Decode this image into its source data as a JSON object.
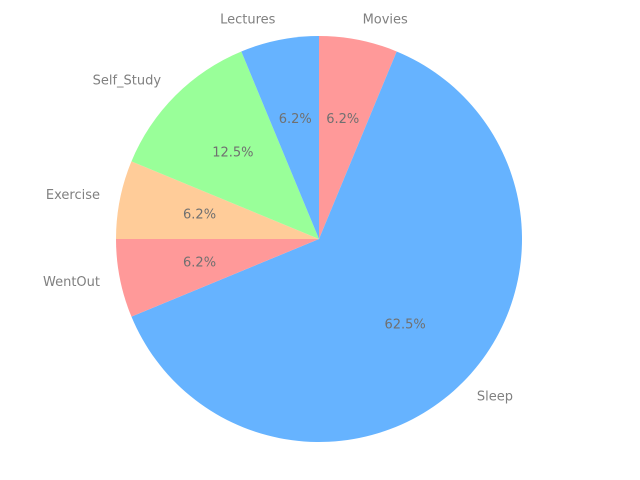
{
  "chart_data": {
    "type": "pie",
    "title": "",
    "categories": [
      "Movies",
      "Sleep",
      "WentOut",
      "Exercise",
      "Self_Study",
      "Lectures"
    ],
    "values": [
      1,
      10,
      1,
      1,
      2,
      1
    ],
    "percent_labels": [
      "6.2%",
      "62.5%",
      "6.2%",
      "6.2%",
      "12.5%",
      "6.2%"
    ],
    "colors": [
      "#ff9999",
      "#66b3ff",
      "#ff9999",
      "#ffcc99",
      "#99ff99",
      "#66b3ff"
    ],
    "start_angle_deg": 90,
    "direction": "clockwise",
    "legend": "none",
    "grid": false
  }
}
